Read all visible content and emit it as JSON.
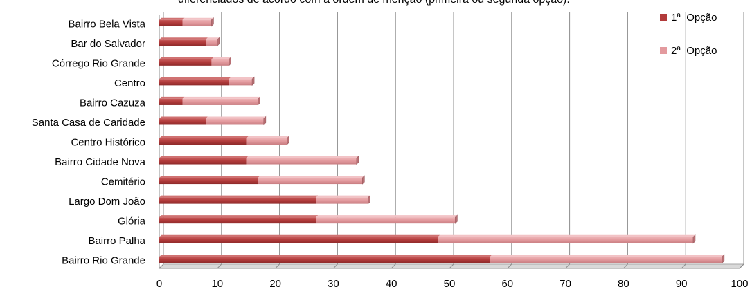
{
  "chart_data": {
    "type": "bar",
    "orientation": "horizontal",
    "stacked": true,
    "title": "diferenciados de acordo com a ordem de menção (primeira ou segunda opção).",
    "categories": [
      "Bairro Bela Vista",
      "Bar do Salvador",
      "Córrego Rio Grande",
      "Centro",
      "Bairro Cazuza",
      "Santa Casa de Caridade",
      "Centro Histórico",
      "Bairro Cidade Nova",
      "Cemitério",
      "Largo Dom João",
      "Glória",
      "Bairro Palha",
      "Bairro Rio Grande"
    ],
    "series": [
      {
        "name": "1ª  Opção",
        "color": "#B23B3B",
        "values": [
          4,
          8,
          9,
          12,
          4,
          8,
          15,
          15,
          17,
          27,
          27,
          48,
          57
        ]
      },
      {
        "name": "2ª  Opção",
        "color": "#E39A9E",
        "values": [
          5,
          2,
          3,
          4,
          13,
          10,
          7,
          19,
          18,
          9,
          24,
          44,
          40
        ]
      }
    ],
    "xlim": [
      0,
      100
    ],
    "xticks": [
      "0",
      "10",
      "20",
      "30",
      "40",
      "50",
      "60",
      "70",
      "80",
      "90",
      "100"
    ],
    "grid": "vertical",
    "legend_position": "top-right"
  }
}
